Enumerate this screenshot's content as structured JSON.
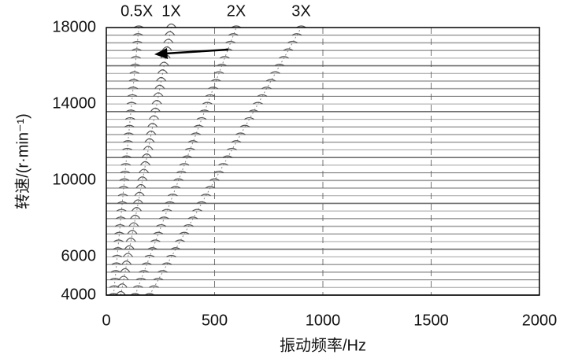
{
  "chart_data": {
    "type": "waterfall",
    "x_label": "振动频率/Hz",
    "y_label": "转速/(r·min⁻¹)",
    "orders": [
      {
        "value": 0.5,
        "label": "0.5X"
      },
      {
        "value": 1,
        "label": "1X"
      },
      {
        "value": 2,
        "label": "2X"
      },
      {
        "value": 3,
        "label": "3X"
      }
    ],
    "speeds": [
      4000,
      4400,
      4800,
      5200,
      5600,
      6000,
      6400,
      6800,
      7200,
      7600,
      8000,
      8400,
      8800,
      9200,
      9600,
      10000,
      10400,
      10800,
      11200,
      11600,
      12000,
      12400,
      12800,
      13200,
      13600,
      14000,
      14400,
      14800,
      15200,
      15600,
      16000,
      16400,
      16800,
      17200,
      17600,
      18000
    ],
    "color": "#555555",
    "xlim": [
      0,
      2000
    ],
    "xticks": [
      0,
      500,
      1000,
      1500,
      2000
    ],
    "ylim": [
      4000,
      18000
    ],
    "yticks": [
      4000,
      6000,
      10000,
      14000,
      18000
    ],
    "grid": true
  }
}
